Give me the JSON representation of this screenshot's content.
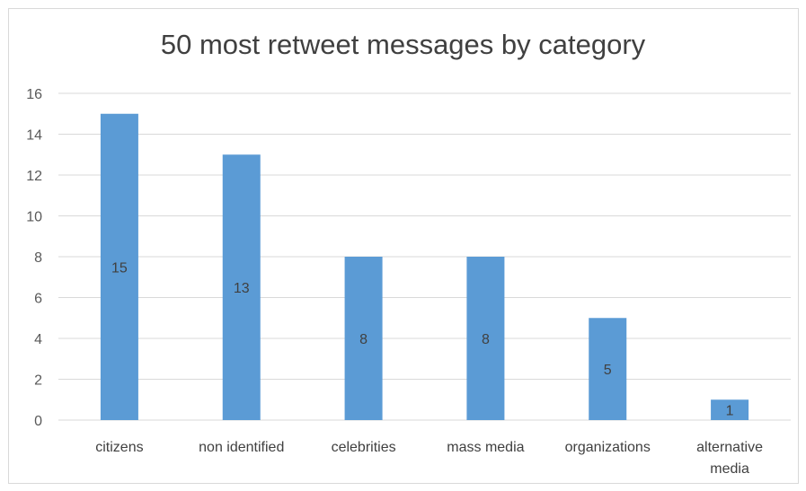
{
  "chart_data": {
    "type": "bar",
    "title": "50 most retweet messages by category",
    "xlabel": "",
    "ylabel": "",
    "categories": [
      "citizens",
      "non identified",
      "celebrities",
      "mass media",
      "organizations",
      "alternative media"
    ],
    "category_lines": [
      [
        "citizens"
      ],
      [
        "non identified"
      ],
      [
        "celebrities"
      ],
      [
        "mass media"
      ],
      [
        "organizations"
      ],
      [
        "alternative",
        "media"
      ]
    ],
    "values": [
      15,
      13,
      8,
      8,
      5,
      1
    ],
    "ylim": [
      0,
      16
    ],
    "yticks": [
      0,
      2,
      4,
      6,
      8,
      10,
      12,
      14,
      16
    ],
    "grid": true,
    "legend": "none",
    "data_labels": [
      "15",
      "13",
      "8",
      "8",
      "5",
      "1"
    ],
    "bar_color": "#5b9bd5",
    "grid_color": "#d9d9d9"
  }
}
